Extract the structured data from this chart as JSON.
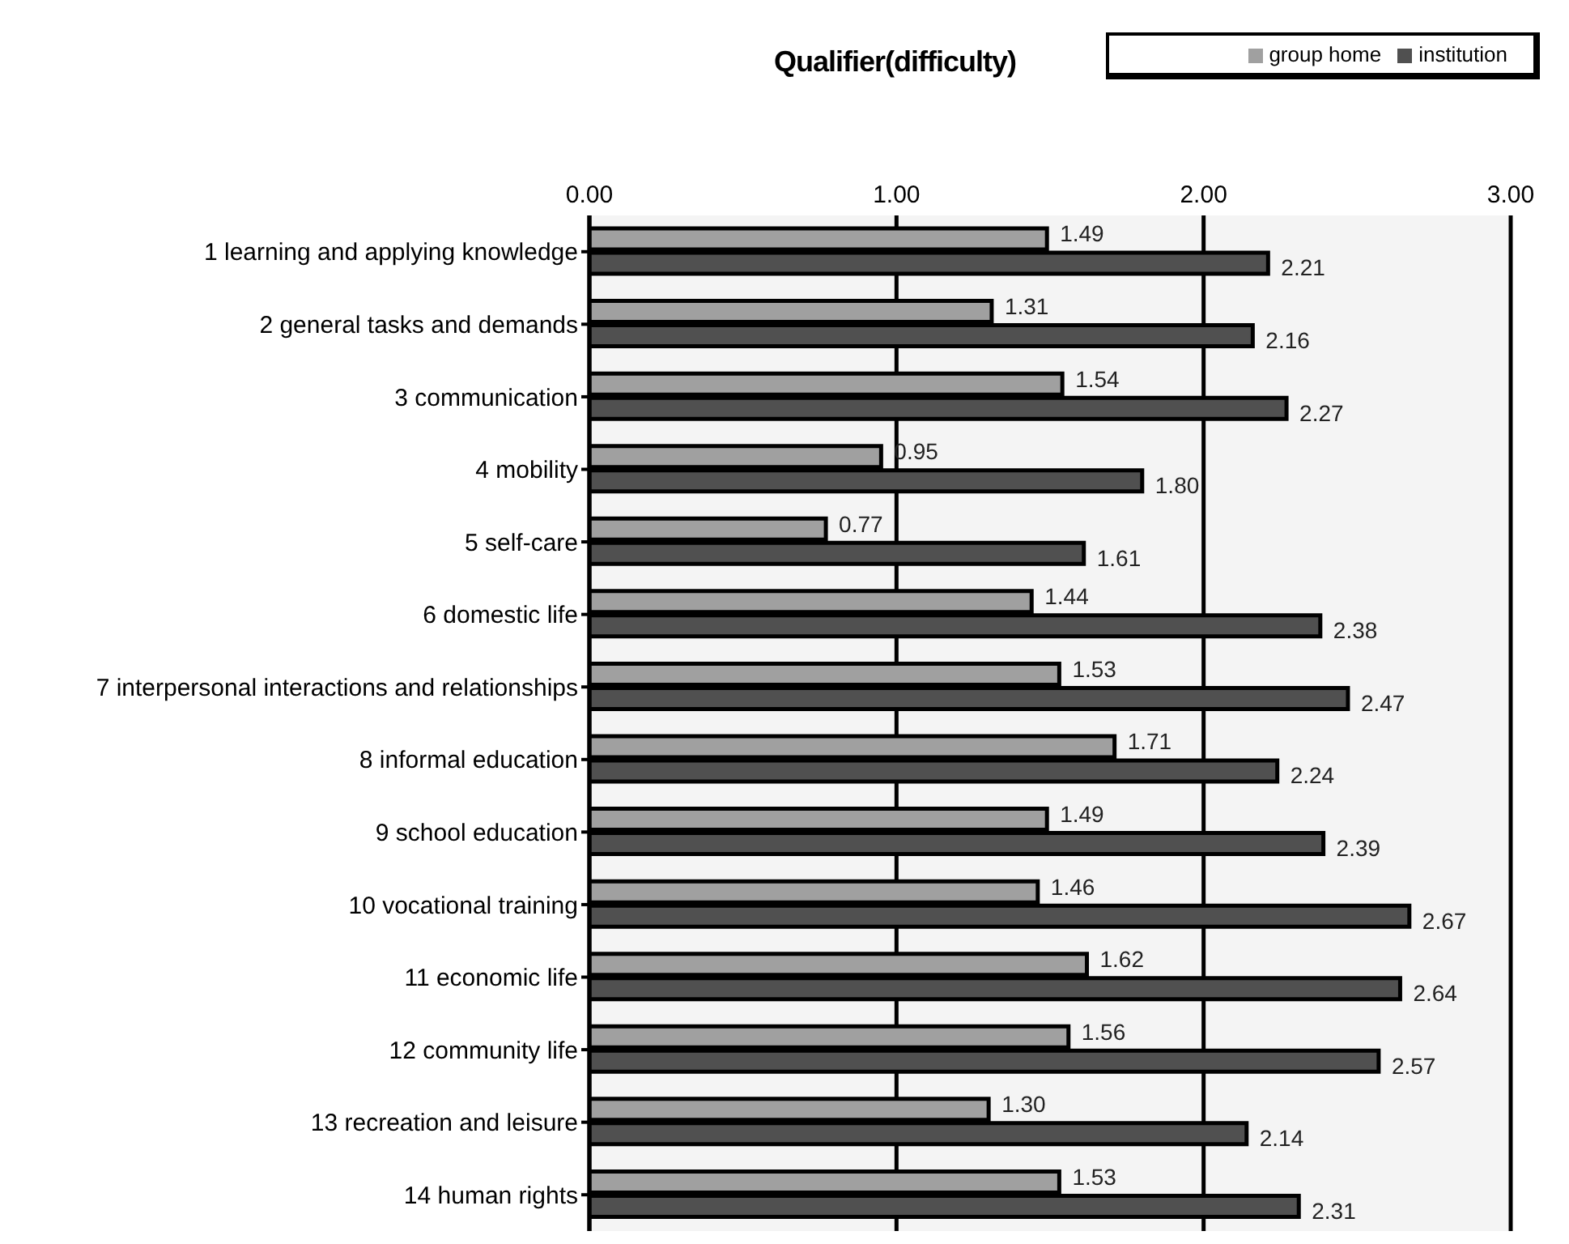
{
  "chart_data": {
    "type": "bar",
    "orientation": "horizontal",
    "title": "Qualifier(difficulty)",
    "categories": [
      "1  learning and applying knowledge",
      "2  general tasks and demands",
      "3  communication",
      "4  mobility",
      "5  self-care",
      "6  domestic life",
      "7  interpersonal interactions and relationships",
      "8  informal education",
      "9  school education",
      "10  vocational training",
      "11  economic life",
      "12  community life",
      "13  recreation and leisure",
      "14  human rights"
    ],
    "series": [
      {
        "name": "group home",
        "color": "#a0a0a0",
        "values": [
          1.49,
          1.31,
          1.54,
          0.95,
          0.77,
          1.44,
          1.53,
          1.71,
          1.49,
          1.46,
          1.62,
          1.56,
          1.3,
          1.53
        ],
        "value_labels": [
          "1.49",
          "1.31",
          "1.54",
          "0.95",
          "0.77",
          "1.44",
          "1.53",
          "1.71",
          "1.49",
          "1.46",
          "1.62",
          "1.56",
          "1.30",
          "1.53"
        ]
      },
      {
        "name": "institution",
        "color": "#505050",
        "values": [
          2.21,
          2.16,
          2.27,
          1.8,
          1.61,
          2.38,
          2.47,
          2.24,
          2.39,
          2.67,
          2.64,
          2.57,
          2.14,
          2.31
        ],
        "value_labels": [
          "2.21",
          "2.16",
          "2.27",
          "1.80",
          "1.61",
          "2.38",
          "2.47",
          "2.24",
          "2.39",
          "2.67",
          "2.64",
          "2.57",
          "2.14",
          "2.31"
        ]
      }
    ],
    "xlim": [
      0,
      3
    ],
    "xticks": [
      {
        "value": 0,
        "label": "0.00"
      },
      {
        "value": 1,
        "label": "1.00"
      },
      {
        "value": 2,
        "label": "2.00"
      },
      {
        "value": 3,
        "label": "3.00"
      }
    ],
    "grid": "x",
    "legend": "top right"
  }
}
